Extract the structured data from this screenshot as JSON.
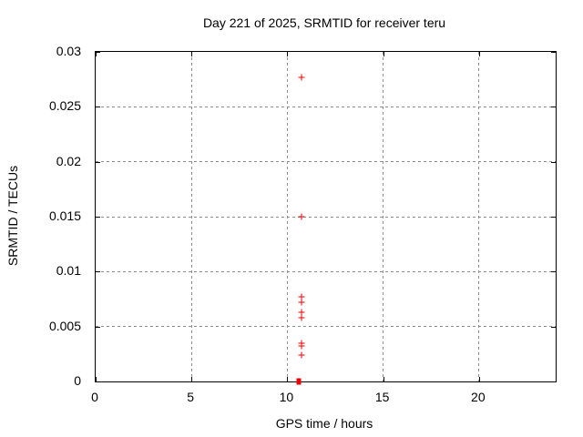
{
  "chart_data": {
    "type": "scatter",
    "title": "Day 221 of 2025, SRMTID for receiver teru",
    "xlabel": "GPS time / hours",
    "ylabel": "SRMTID / TECUs",
    "xlim": [
      0,
      24
    ],
    "ylim": [
      0,
      0.03
    ],
    "xticks": [
      0,
      5,
      10,
      15,
      20
    ],
    "xtick_labels": [
      "0",
      "5",
      "10",
      "15",
      "20"
    ],
    "yticks": [
      0,
      0.005,
      0.01,
      0.015,
      0.02,
      0.025,
      0.03
    ],
    "ytick_labels": [
      "0",
      "0.005",
      "0.01",
      "0.015",
      "0.02",
      "0.025",
      "0.03"
    ],
    "grid": true,
    "legend": "none",
    "series": [
      {
        "name": "srmtid-points",
        "marker": "plus",
        "color": "#ee0000",
        "points": [
          [
            10.72,
            0.0277
          ],
          [
            10.72,
            0.015
          ],
          [
            10.72,
            0.0077
          ],
          [
            10.72,
            0.0072
          ],
          [
            10.72,
            0.0063
          ],
          [
            10.72,
            0.0058
          ],
          [
            10.72,
            0.0035
          ],
          [
            10.72,
            0.0032
          ],
          [
            10.72,
            0.0024
          ]
        ]
      },
      {
        "name": "srmtid-zero-points",
        "marker": "square",
        "color": "#ee0000",
        "points": [
          [
            10.6,
            0.0
          ]
        ]
      }
    ],
    "colors": {
      "background": "#ffffff",
      "border": "#000000",
      "grid": "#8f8f8f",
      "text": "#000000",
      "marker": "#ee0000"
    }
  }
}
